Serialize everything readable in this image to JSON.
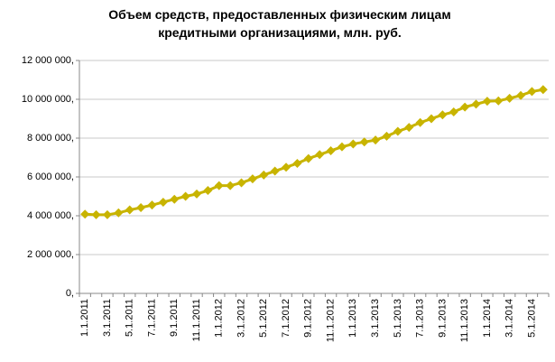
{
  "chart_data": {
    "type": "line",
    "title": "Объем средств, предоставленных физическим лицам кредитными организациями, млн. руб.",
    "categories": [
      "1.1.2011",
      null,
      "3.1.2011",
      null,
      "5.1.2011",
      null,
      "7.1.2011",
      null,
      "9.1.2011",
      null,
      "11.1.2011",
      null,
      "1.1.2012",
      null,
      "3.1.2012",
      null,
      "5.1.2012",
      null,
      "7.1.2012",
      null,
      "9.1.2012",
      null,
      "11.1.2012",
      null,
      "1.1.2013",
      null,
      "3.1.2013",
      null,
      "5.1.2013",
      null,
      "7.1.2013",
      null,
      "9.1.2013",
      null,
      "11.1.2013",
      null,
      "1.1.2014",
      null,
      "3.1.2014",
      null,
      "5.1.2014",
      null
    ],
    "values": [
      4080000,
      4050000,
      4050000,
      4150000,
      4300000,
      4420000,
      4550000,
      4700000,
      4850000,
      5000000,
      5120000,
      5300000,
      5550000,
      5550000,
      5700000,
      5900000,
      6100000,
      6300000,
      6500000,
      6700000,
      6950000,
      7150000,
      7350000,
      7550000,
      7700000,
      7800000,
      7900000,
      8100000,
      8350000,
      8550000,
      8800000,
      9000000,
      9200000,
      9350000,
      9600000,
      9750000,
      9900000,
      9920000,
      10050000,
      10200000,
      10400000,
      10500000
    ],
    "color": "#c8b400",
    "ylim": [
      0,
      12000000
    ],
    "yticks": [
      {
        "value": 0,
        "label": "0,"
      },
      {
        "value": 2000000,
        "label": "2 000 000,"
      },
      {
        "value": 4000000,
        "label": "4 000 000,"
      },
      {
        "value": 6000000,
        "label": "6 000 000,"
      },
      {
        "value": 8000000,
        "label": "8 000 000,"
      },
      {
        "value": 10000000,
        "label": "10 000 000,"
      },
      {
        "value": 12000000,
        "label": "12 000 000,"
      }
    ],
    "grid": true
  }
}
